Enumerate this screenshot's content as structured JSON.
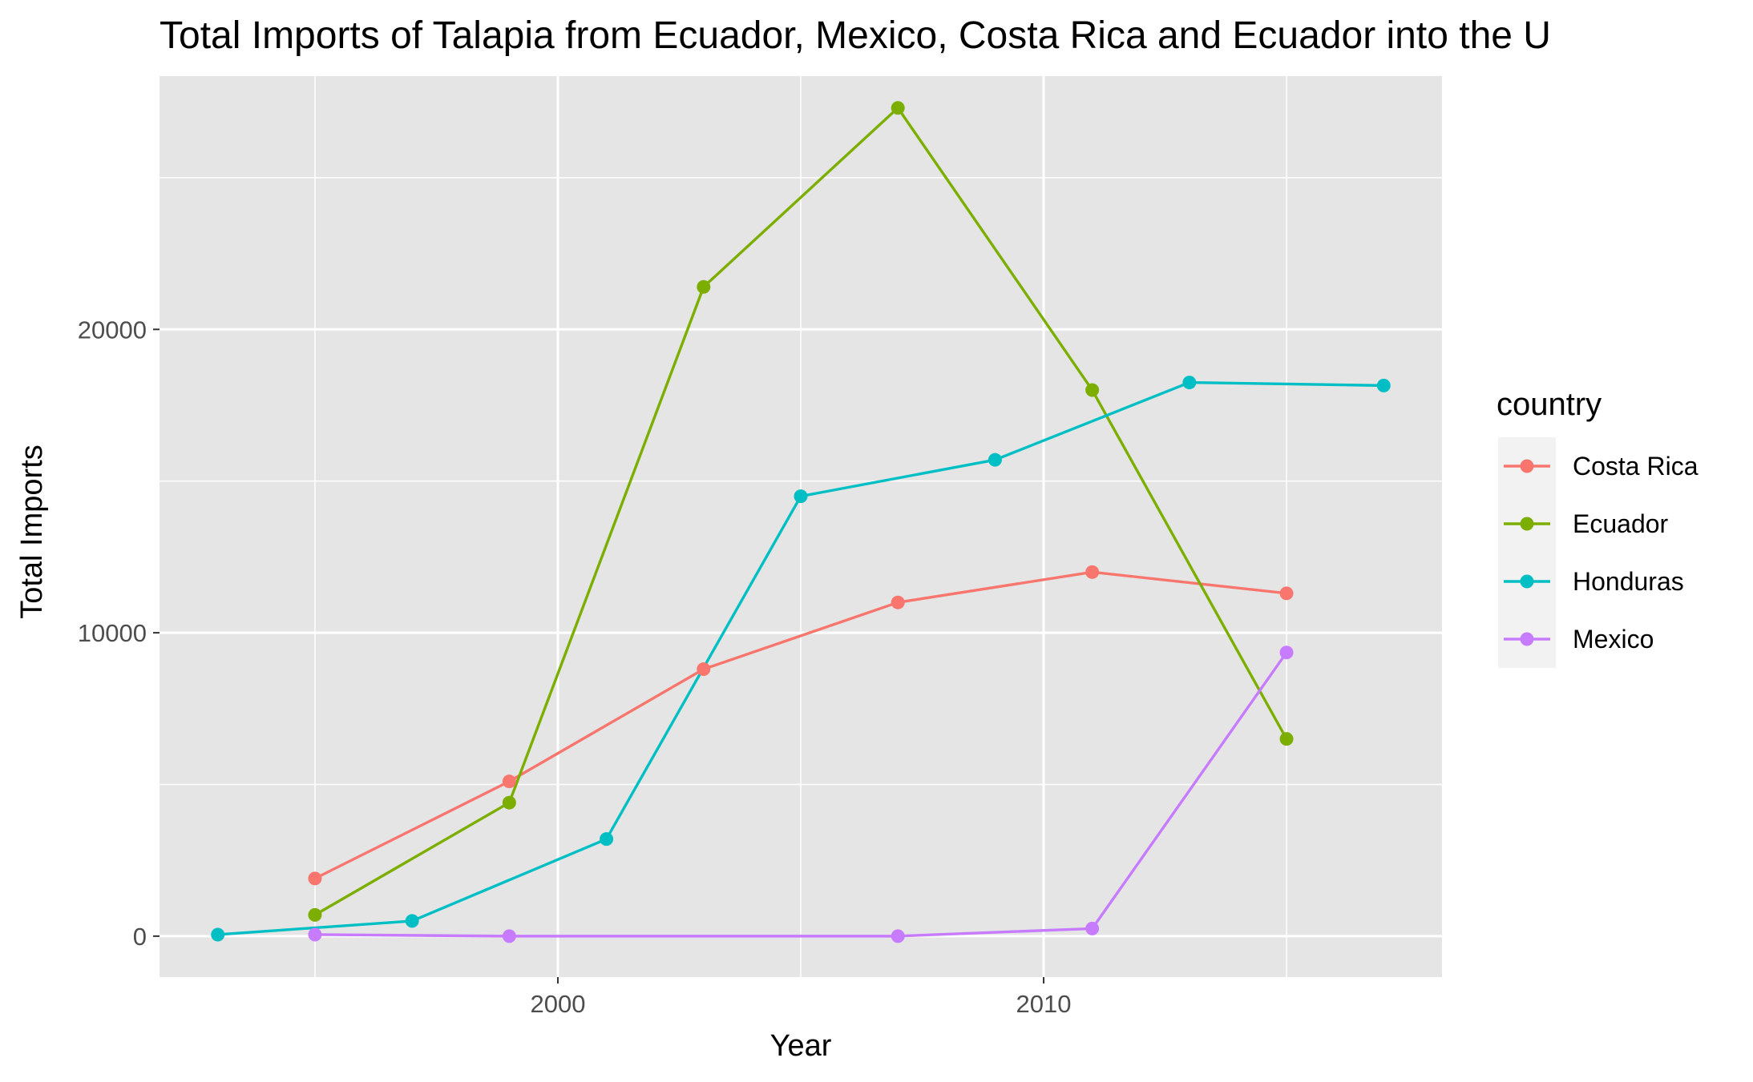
{
  "chart_data": {
    "type": "line",
    "title": "Total Imports of Talapia from Ecuador, Mexico, Costa Rica and Ecuador into the U",
    "xlabel": "Year",
    "ylabel": "Total Imports",
    "xlim": [
      1991.8,
      2018.2
    ],
    "ylim": [
      -1350,
      28350
    ],
    "x_ticks": [
      2000,
      2010
    ],
    "x_tick_labels": [
      "2000",
      "2010"
    ],
    "x_minor_ticks": [
      1995,
      2005,
      2015
    ],
    "y_ticks": [
      0,
      10000,
      20000
    ],
    "y_tick_labels": [
      "0",
      "10000",
      "20000"
    ],
    "y_minor_ticks": [
      5000,
      15000,
      25000
    ],
    "grid": true,
    "panel_background": "#e5e5e5",
    "grid_color": "#ffffff",
    "legend": {
      "title": "country",
      "position": "right"
    },
    "series": [
      {
        "name": "Costa Rica",
        "color": "#f8766d",
        "x": [
          1995,
          1999,
          2003,
          2007,
          2011,
          2015
        ],
        "y": [
          1900,
          5100,
          8800,
          11000,
          12000,
          11300
        ]
      },
      {
        "name": "Ecuador",
        "color": "#7cae00",
        "x": [
          1995,
          1999,
          2003,
          2007,
          2011,
          2015
        ],
        "y": [
          700,
          4400,
          21400,
          27300,
          18000,
          6500
        ]
      },
      {
        "name": "Honduras",
        "color": "#00bfc4",
        "x": [
          1993,
          1997,
          2001,
          2005,
          2009,
          2013,
          2017
        ],
        "y": [
          50,
          500,
          3200,
          14500,
          15700,
          18250,
          18150
        ]
      },
      {
        "name": "Mexico",
        "color": "#c77cff",
        "x": [
          1995,
          1999,
          2007,
          2011,
          2015
        ],
        "y": [
          50,
          0,
          0,
          250,
          9350
        ]
      }
    ]
  }
}
